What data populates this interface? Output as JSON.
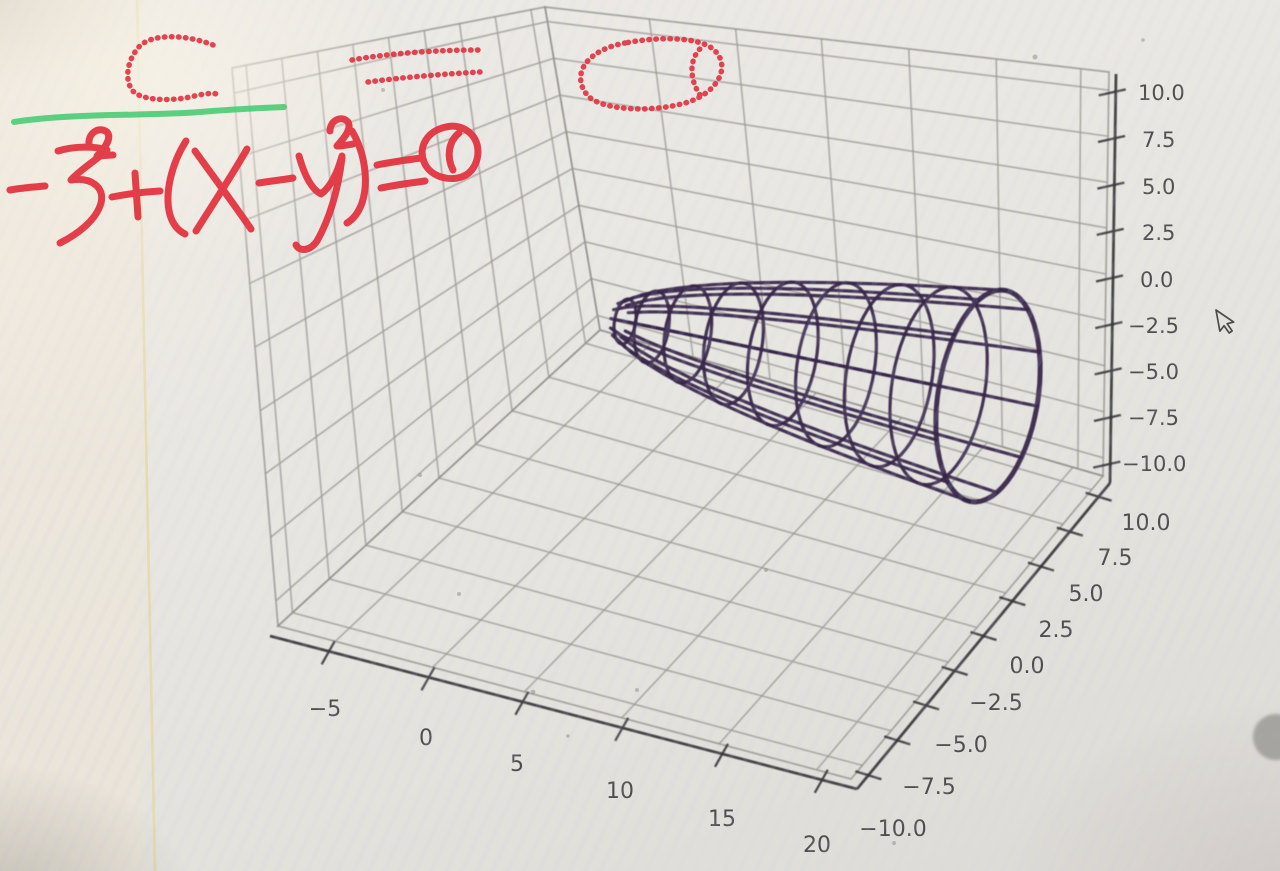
{
  "photo": {
    "description": "Photograph of a computer screen showing a matplotlib 3D wireframe plot annotated with handwritten digital ink",
    "background_hex": "#e9e7e2"
  },
  "handwriting": {
    "line1_text": "C = 0",
    "equation_text": "−z²+(x−y²)=0",
    "ink_color_hex": "#e23440",
    "underline_color_hex": "#4ecc77"
  },
  "chart_data": {
    "type": "wireframe-3d-surface",
    "title": "",
    "equation_annotated": "−z² + (x − y²) = 0",
    "surface": "x = y² + z² (paraboloid opening along +x, apex near origin, mouth near x = 20)",
    "wireframe_color_hex": "#38284b",
    "grid": true,
    "legend": false,
    "axes": {
      "x": {
        "tick_labels": [
          "−5",
          "0",
          "5",
          "10",
          "15",
          "20"
        ],
        "approx_range": [
          -7.5,
          22.5
        ]
      },
      "y": {
        "tick_labels_top_to_bottom": [
          "10.0",
          "7.5",
          "5.0",
          "2.5",
          "0.0",
          "−2.5",
          "−5.0",
          "−7.5",
          "−10.0"
        ],
        "approx_range": [
          -11,
          11
        ]
      },
      "z": {
        "tick_labels_top_to_bottom": [
          "10.0",
          "7.5",
          "5.0",
          "2.5",
          "0.0",
          "−2.5",
          "−5.0",
          "−7.5",
          "−10.0"
        ],
        "approx_range": [
          -11,
          11
        ]
      }
    }
  },
  "cursor": {
    "style": "arrow-pointer"
  }
}
